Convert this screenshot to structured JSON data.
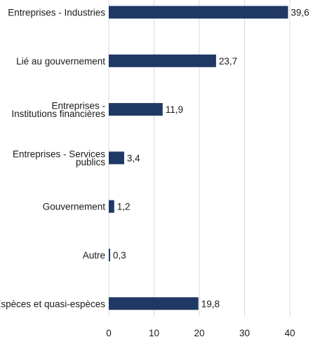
{
  "chart_data": {
    "type": "bar",
    "orientation": "horizontal",
    "categories": [
      [
        "Entreprises - Industries"
      ],
      [
        "Lié au gouvernement"
      ],
      [
        "Entreprises -",
        "Institutions financières"
      ],
      [
        "Entreprises - Services",
        "publics"
      ],
      [
        "Gouvernement"
      ],
      [
        "Autre"
      ],
      [
        "Espèces et quasi-espèces"
      ]
    ],
    "values": [
      39.6,
      23.7,
      11.9,
      3.4,
      1.2,
      0.3,
      19.8
    ],
    "value_labels": [
      "39,6",
      "23,7",
      "11,9",
      "3,4",
      "1,2",
      "0,3",
      "19,8"
    ],
    "xlim": [
      0,
      40
    ],
    "xticks": [
      0,
      10,
      20,
      30,
      40
    ],
    "grid": "vertical",
    "title": "",
    "xlabel": "",
    "ylabel": "",
    "colors": {
      "bar": "#1f3864",
      "grid": "#d9d9d9",
      "text": "#1a1a1a"
    }
  }
}
